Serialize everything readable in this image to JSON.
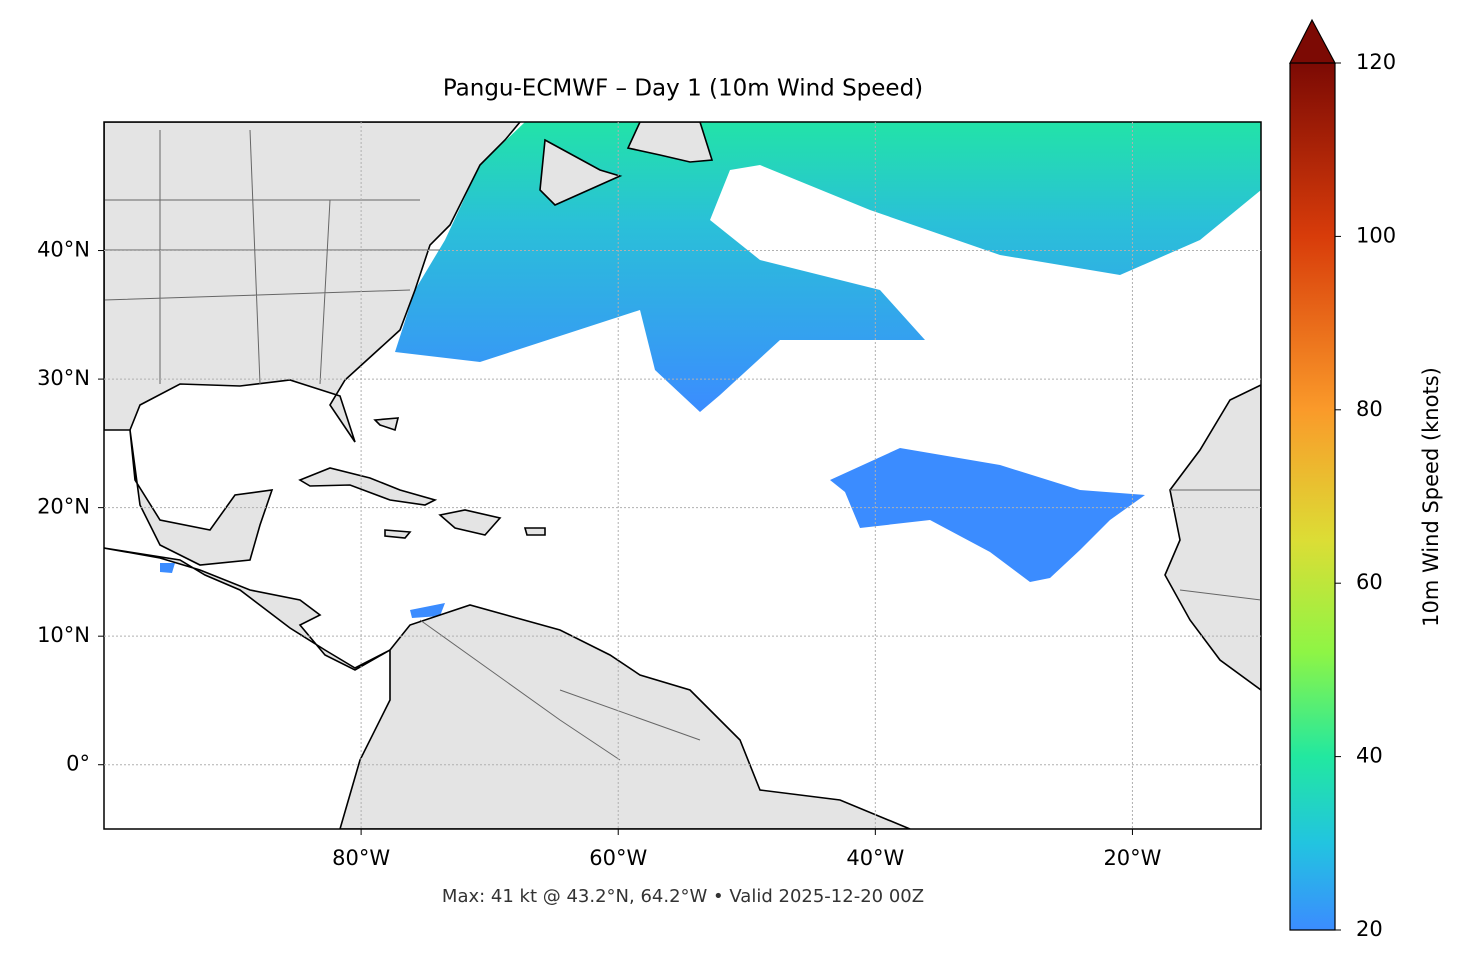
{
  "chart_data": {
    "type": "map",
    "title": "Pangu-ECMWF – Day 1 (10m Wind Speed)",
    "footer": "Max: 41 kt @ 43.2°N, 64.2°W • Valid 2025-12-20 00Z",
    "xlim": [
      -100,
      -10
    ],
    "ylim": [
      -5,
      50
    ],
    "xticks": [
      {
        "value": -80,
        "label": "80°W"
      },
      {
        "value": -60,
        "label": "60°W"
      },
      {
        "value": -40,
        "label": "40°W"
      },
      {
        "value": -20,
        "label": "20°W"
      }
    ],
    "yticks": [
      {
        "value": 40,
        "label": "40°N"
      },
      {
        "value": 30,
        "label": "30°N"
      },
      {
        "value": 20,
        "label": "20°N"
      },
      {
        "value": 10,
        "label": "10°N"
      },
      {
        "value": 0,
        "label": "0°"
      }
    ],
    "grid": true,
    "colorbar": {
      "label": "10m Wind Speed (knots)",
      "lim": [
        20,
        120
      ],
      "ticks": [
        20,
        40,
        60,
        80,
        100,
        120
      ]
    }
  }
}
